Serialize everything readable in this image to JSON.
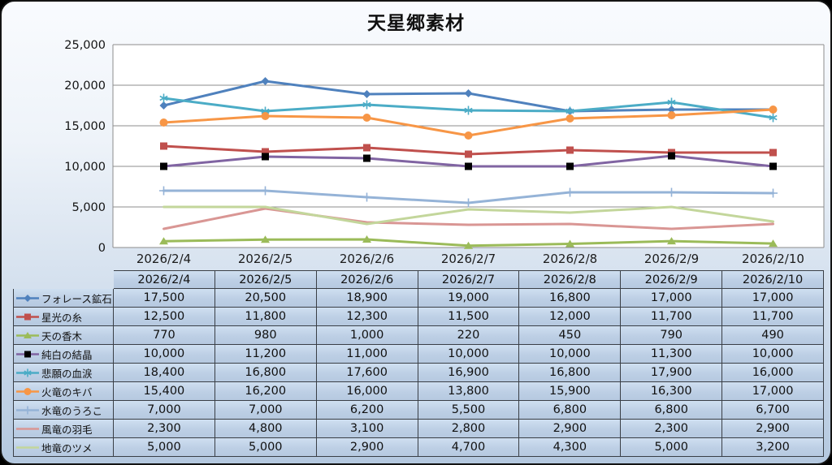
{
  "title": "天星郷素材",
  "chart_data": {
    "type": "line",
    "title": "天星郷素材",
    "categories": [
      "2026/2/4",
      "2026/2/5",
      "2026/2/6",
      "2026/2/7",
      "2026/2/8",
      "2026/2/9",
      "2026/2/10"
    ],
    "xlabel": "",
    "ylabel": "",
    "ylim": [
      0,
      25000
    ],
    "y_step": 5000,
    "grid": true,
    "legend_position": "table-left",
    "colors": {
      "grid": "#8c8c8c",
      "plot_background": "#ffffff",
      "frame_gradient_top": "#f9fbfe",
      "frame_gradient_bottom": "#b4c8df",
      "table_cell": "#c3d4e9",
      "table_border": "#3a3f46"
    },
    "series": [
      {
        "name": "フォレース鉱石",
        "color": "#4F81BD",
        "marker": "diamond",
        "marker_color": "#4F81BD",
        "values": [
          17500,
          20500,
          18900,
          19000,
          16800,
          17000,
          17000
        ]
      },
      {
        "name": "星光の糸",
        "color": "#C0504D",
        "marker": "square",
        "marker_color": "#C0504D",
        "values": [
          12500,
          11800,
          12300,
          11500,
          12000,
          11700,
          11700
        ]
      },
      {
        "name": "天の香木",
        "color": "#9BBB59",
        "marker": "triangle",
        "marker_color": "#9BBB59",
        "values": [
          770,
          980,
          1000,
          220,
          450,
          790,
          490
        ]
      },
      {
        "name": "純白の結晶",
        "color": "#8064A2",
        "marker": "square",
        "marker_color": "#000000",
        "values": [
          10000,
          11200,
          11000,
          10000,
          10000,
          11300,
          10000
        ]
      },
      {
        "name": "悲願の血涙",
        "color": "#4BACC6",
        "marker": "asterisk",
        "marker_color": "#4BACC6",
        "values": [
          18400,
          16800,
          17600,
          16900,
          16800,
          17900,
          16000
        ]
      },
      {
        "name": "火竜のキバ",
        "color": "#F79646",
        "marker": "circle",
        "marker_color": "#F79646",
        "values": [
          15400,
          16200,
          16000,
          13800,
          15900,
          16300,
          17000
        ]
      },
      {
        "name": "水竜のうろこ",
        "color": "#95B3D7",
        "marker": "plus",
        "marker_color": "#95B3D7",
        "values": [
          7000,
          7000,
          6200,
          5500,
          6800,
          6800,
          6700
        ]
      },
      {
        "name": "風竜の羽毛",
        "color": "#D99694",
        "marker": "none",
        "marker_color": "#D99694",
        "values": [
          2300,
          4800,
          3100,
          2800,
          2900,
          2300,
          2900
        ]
      },
      {
        "name": "地竜のツメ",
        "color": "#C3D69B",
        "marker": "none",
        "marker_color": "#C3D69B",
        "values": [
          5000,
          5000,
          2900,
          4700,
          4300,
          5000,
          3200
        ]
      }
    ]
  }
}
